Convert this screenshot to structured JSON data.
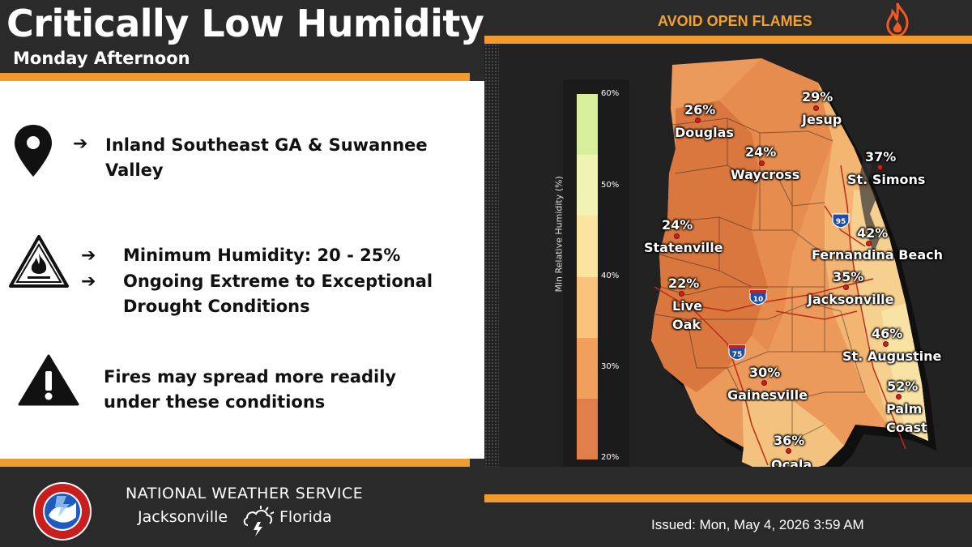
{
  "header": {
    "title": "Critically Low Humidity",
    "subtitle": "Monday Afternoon",
    "banner": "AVOID OPEN FLAMES"
  },
  "bullets": {
    "location": "Inland Southeast GA & Suwannee Valley",
    "location_line1": "Inland Southeast GA & Suwannee",
    "location_line2": "Valley",
    "humidity": "Minimum Humidity: 20 - 25%",
    "drought_line1": "Ongoing Extreme to Exceptional",
    "drought_line2": "Drought Conditions",
    "fire_line1": "Fires may spread more readily",
    "fire_line2": "under these conditions",
    "arrow": "➔"
  },
  "legend": {
    "title": "Min Relative Humidity (%)",
    "labels": [
      "60%",
      "50%",
      "40%",
      "30%",
      "20%"
    ],
    "colors": [
      "#d7ef9c",
      "#f1f3b5",
      "#fbe4a0",
      "#f8c37a",
      "#f0a05a",
      "#e07f4a"
    ]
  },
  "cities": [
    {
      "name": "Douglas",
      "value": "26%"
    },
    {
      "name": "Jesup",
      "value": "29%"
    },
    {
      "name": "Waycross",
      "value": "24%"
    },
    {
      "name": "St. Simons",
      "value": "37%"
    },
    {
      "name": "Statenville",
      "value": "24%"
    },
    {
      "name": "Fernandina Beach",
      "value": "42%"
    },
    {
      "name": "Live",
      "value": "22%"
    },
    {
      "name": "Oak",
      "value": ""
    },
    {
      "name": "Jacksonville",
      "value": "35%"
    },
    {
      "name": "St. Augustine",
      "value": "46%"
    },
    {
      "name": "Gainesville",
      "value": "30%"
    },
    {
      "name": "Palm",
      "value": "52%"
    },
    {
      "name": "Coast",
      "value": ""
    },
    {
      "name": "Ocala",
      "value": "36%"
    }
  ],
  "highways": [
    "95",
    "10",
    "75"
  ],
  "footer": {
    "agency": "NATIONAL WEATHER SERVICE",
    "office": "Jacksonville",
    "state": "Florida",
    "issued": "Issued: Mon, May 4, 2026 3:59 AM"
  },
  "colors": {
    "accent": "#f29a2e",
    "dark": "#2a2a2a",
    "banner_text": "#f4a12d"
  }
}
